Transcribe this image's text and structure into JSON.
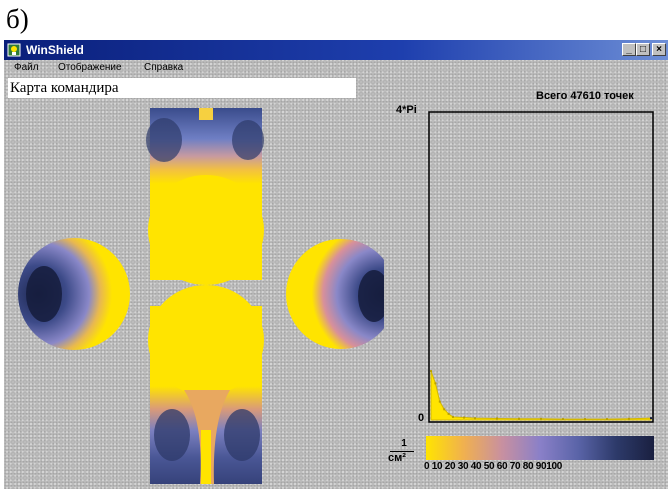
{
  "figure_label": "б)",
  "window": {
    "title": "WinShield",
    "controls": [
      "minimize-icon",
      "maximize-icon",
      "close-icon"
    ]
  },
  "menu": {
    "items": [
      "Файл",
      "Отображение",
      "Справка"
    ]
  },
  "map": {
    "name": "Карта командира"
  },
  "histogram": {
    "total_label": "Всего 47610 точек",
    "y_max_label": "4*Pi",
    "y_min_label": "0"
  },
  "color_scale": {
    "unit_numerator": "1",
    "unit_denominator": "см²",
    "ticks": "0  10 20 30 40 50 60 70 80 90100",
    "colors": [
      "#ffe400",
      "#f0b050",
      "#c890a0",
      "#8a80c8",
      "#5a64a8",
      "#2d3a6a",
      "#1a2040"
    ]
  },
  "chart_data": {
    "type": "area",
    "title": "",
    "ylim_labels": [
      "0",
      "4*Pi"
    ],
    "x": [
      0,
      2,
      4,
      6,
      8,
      10,
      15,
      20,
      30,
      40,
      50,
      60,
      70,
      80,
      90,
      100
    ],
    "y": [
      0.16,
      0.12,
      0.06,
      0.035,
      0.02,
      0.01,
      0.008,
      0.006,
      0.005,
      0.004,
      0.004,
      0.003,
      0.003,
      0.003,
      0.004,
      0.006
    ],
    "xlim": [
      0,
      100
    ],
    "ylim": [
      0,
      1
    ],
    "grid": false,
    "legend": "none"
  }
}
